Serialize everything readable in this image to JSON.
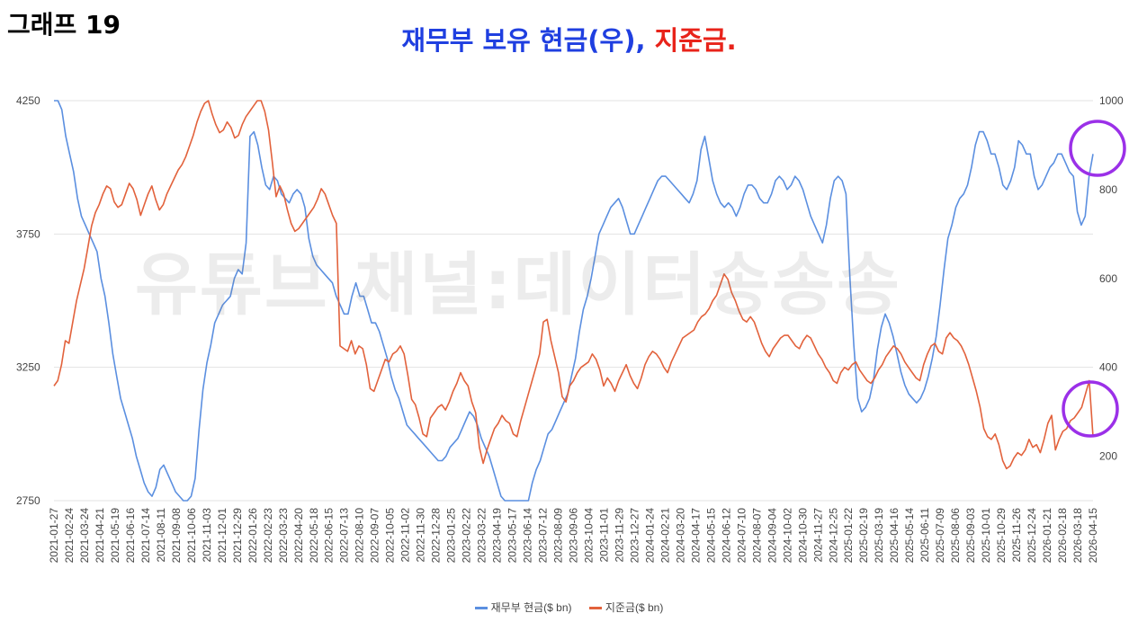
{
  "header": {
    "graph_label": "그래프 19",
    "title_blue": "재무부 보유 현금(우),",
    "title_red": "지준금."
  },
  "watermark": "유튜브 채널:데이터송송송",
  "colors": {
    "tga": "#5b8fe0",
    "reserves": "#e2623c",
    "highlight": "#9b30e8",
    "grid": "#e3e3e3"
  },
  "chart_data": {
    "type": "line",
    "title": "재무부 보유 현금(우), 지준금.",
    "left_axis": {
      "range": [
        2750,
        4250
      ],
      "ticks": [
        2750,
        3250,
        3750,
        4250
      ]
    },
    "right_axis": {
      "range": [
        100,
        1000
      ],
      "ticks": [
        200,
        400,
        600,
        800,
        1000
      ]
    },
    "x_tick_labels": [
      "2021-01-27",
      "2021-02-24",
      "2021-03-24",
      "2021-04-21",
      "2021-05-19",
      "2021-06-16",
      "2021-07-14",
      "2021-08-11",
      "2021-09-08",
      "2021-10-06",
      "2021-11-03",
      "2021-12-01",
      "2021-12-29",
      "2022-01-26",
      "2022-02-23",
      "2022-03-23",
      "2022-04-20",
      "2022-05-18",
      "2022-06-15",
      "2022-07-13",
      "2022-08-10",
      "2022-09-07",
      "2022-10-05",
      "2022-11-02",
      "2022-11-30",
      "2022-12-28",
      "2023-01-25",
      "2023-02-22",
      "2023-03-22",
      "2023-04-19",
      "2023-05-17",
      "2023-06-14",
      "2023-07-12",
      "2023-08-09",
      "2023-09-06",
      "2023-10-04",
      "2023-11-01",
      "2023-11-29",
      "2023-12-27",
      "2024-01-24",
      "2024-02-21",
      "2024-03-20",
      "2024-04-17",
      "2024-05-15",
      "2024-06-12",
      "2024-07-10",
      "2024-08-07",
      "2024-09-04",
      "2024-10-02",
      "2024-10-30",
      "2024-11-27",
      "2024-12-25",
      "2025-01-22",
      "2025-02-19",
      "2025-03-19",
      "2025-04-16",
      "2025-05-14",
      "2025-06-11",
      "2025-07-09",
      "2025-08-06",
      "2025-09-03",
      "2025-10-01",
      "2025-10-29",
      "2025-11-26",
      "2025-12-24",
      "2026-01-21",
      "2026-02-18",
      "2026-03-18",
      "2026-04-15"
    ],
    "series": [
      {
        "name": "재무부 현금($ bn)",
        "axis": "right",
        "values": [
          1050,
          1010,
          980,
          920,
          880,
          840,
          780,
          740,
          720,
          700,
          680,
          660,
          600,
          560,
          500,
          430,
          380,
          330,
          300,
          270,
          240,
          200,
          170,
          140,
          120,
          110,
          130,
          170,
          180,
          160,
          140,
          120,
          110,
          100,
          95,
          110,
          150,
          260,
          350,
          410,
          450,
          500,
          520,
          540,
          550,
          560,
          600,
          620,
          610,
          680,
          920,
          930,
          900,
          850,
          810,
          800,
          830,
          820,
          790,
          780,
          770,
          790,
          800,
          790,
          760,
          690,
          650,
          630,
          620,
          610,
          600,
          590,
          560,
          540,
          520,
          520,
          560,
          590,
          560,
          560,
          530,
          500,
          500,
          480,
          450,
          420,
          380,
          350,
          330,
          300,
          270,
          260,
          250,
          240,
          230,
          220,
          210,
          200,
          190,
          190,
          200,
          220,
          230,
          240,
          260,
          280,
          300,
          290,
          270,
          240,
          220,
          200,
          170,
          140,
          110,
          90,
          70,
          60,
          50,
          40,
          60,
          100,
          140,
          170,
          190,
          220,
          250,
          260,
          280,
          300,
          320,
          340,
          380,
          420,
          480,
          530,
          560,
          600,
          650,
          700,
          720,
          740,
          760,
          770,
          780,
          760,
          730,
          700,
          700,
          720,
          740,
          760,
          780,
          800,
          820,
          830,
          830,
          820,
          810,
          800,
          790,
          780,
          770,
          790,
          820,
          890,
          920,
          870,
          820,
          790,
          770,
          760,
          770,
          760,
          740,
          760,
          790,
          810,
          810,
          800,
          780,
          770,
          770,
          790,
          820,
          830,
          820,
          800,
          810,
          830,
          820,
          800,
          770,
          740,
          720,
          700,
          680,
          720,
          780,
          820,
          830,
          820,
          790,
          600,
          450,
          330,
          300,
          310,
          330,
          370,
          440,
          490,
          520,
          500,
          470,
          430,
          390,
          360,
          340,
          330,
          320,
          330,
          350,
          380,
          420,
          470,
          540,
          620,
          690,
          720,
          760,
          780,
          790,
          810,
          850,
          900,
          930,
          930,
          910,
          880,
          880,
          850,
          810,
          800,
          820,
          850,
          910,
          900,
          880,
          880,
          830,
          800,
          810,
          830,
          850,
          860,
          880,
          880,
          860,
          840,
          830,
          750,
          720,
          740,
          830,
          880
        ]
      },
      {
        "name": "지준금($ bn)",
        "axis": "left",
        "values": [
          3180,
          3200,
          3260,
          3350,
          3340,
          3420,
          3500,
          3560,
          3620,
          3700,
          3780,
          3830,
          3860,
          3900,
          3930,
          3920,
          3870,
          3850,
          3860,
          3900,
          3940,
          3920,
          3880,
          3820,
          3860,
          3900,
          3930,
          3880,
          3840,
          3860,
          3900,
          3930,
          3960,
          3990,
          4010,
          4040,
          4080,
          4120,
          4170,
          4210,
          4240,
          4270,
          4200,
          4160,
          4130,
          4140,
          4170,
          4150,
          4110,
          4120,
          4160,
          4190,
          4210,
          4230,
          4260,
          4250,
          4210,
          4140,
          4020,
          3890,
          3930,
          3900,
          3840,
          3790,
          3760,
          3770,
          3790,
          3810,
          3830,
          3850,
          3880,
          3920,
          3900,
          3860,
          3820,
          3790,
          3330,
          3320,
          3310,
          3350,
          3300,
          3330,
          3320,
          3260,
          3170,
          3160,
          3200,
          3240,
          3280,
          3270,
          3300,
          3310,
          3330,
          3300,
          3220,
          3130,
          3110,
          3060,
          3000,
          2990,
          3060,
          3080,
          3100,
          3110,
          3090,
          3120,
          3160,
          3190,
          3230,
          3200,
          3180,
          3120,
          3080,
          2950,
          2890,
          2940,
          2980,
          3020,
          3040,
          3070,
          3050,
          3040,
          3000,
          2990,
          3050,
          3100,
          3150,
          3200,
          3250,
          3300,
          3420,
          3430,
          3350,
          3290,
          3230,
          3140,
          3120,
          3180,
          3200,
          3230,
          3250,
          3260,
          3270,
          3300,
          3280,
          3240,
          3180,
          3210,
          3190,
          3160,
          3200,
          3230,
          3260,
          3220,
          3190,
          3170,
          3210,
          3260,
          3290,
          3310,
          3300,
          3280,
          3250,
          3230,
          3270,
          3300,
          3330,
          3360,
          3370,
          3380,
          3390,
          3420,
          3440,
          3450,
          3470,
          3500,
          3520,
          3560,
          3600,
          3580,
          3530,
          3500,
          3460,
          3430,
          3420,
          3440,
          3420,
          3380,
          3340,
          3310,
          3290,
          3320,
          3340,
          3360,
          3370,
          3370,
          3350,
          3330,
          3320,
          3350,
          3370,
          3360,
          3330,
          3300,
          3280,
          3250,
          3230,
          3200,
          3190,
          3230,
          3250,
          3240,
          3260,
          3270,
          3240,
          3220,
          3200,
          3190,
          3210,
          3240,
          3260,
          3290,
          3310,
          3330,
          3320,
          3300,
          3270,
          3250,
          3230,
          3210,
          3200,
          3260,
          3300,
          3330,
          3340,
          3310,
          3300,
          3360,
          3380,
          3360,
          3350,
          3330,
          3300,
          3260,
          3210,
          3160,
          3100,
          3020,
          2990,
          2980,
          3000,
          2960,
          2900,
          2870,
          2880,
          2910,
          2930,
          2920,
          2940,
          2980,
          2950,
          2960,
          2930,
          2980,
          3040,
          3070,
          2940,
          2980,
          3010,
          3020,
          3050,
          3060,
          3080,
          3100,
          3150,
          3200,
          2990
        ]
      }
    ],
    "legend_placement": "bottom",
    "grid": true
  },
  "legend": {
    "tga_label": "재무부 현금($ bn)",
    "reserves_label": "지준금($ bn)"
  }
}
